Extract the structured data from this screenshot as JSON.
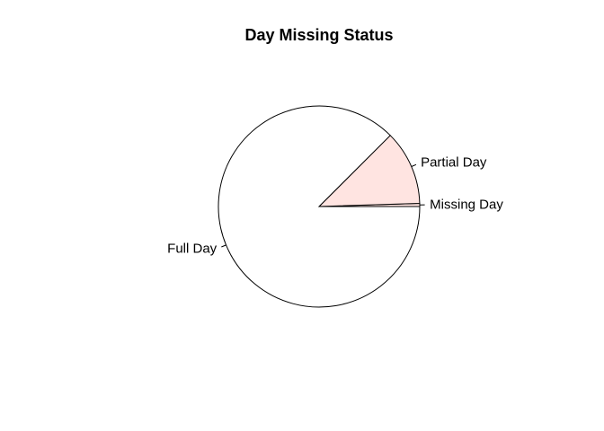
{
  "chart_data": {
    "type": "pie",
    "title": "Day Missing Status",
    "labels": [
      "Missing Day",
      "Partial Day",
      "Full Day"
    ],
    "values": [
      0.5,
      12.0,
      87.5
    ],
    "colors": [
      "#ffe4e1",
      "#ffe4e1",
      "#ffffff"
    ],
    "start_angle_deg": 0,
    "direction": "counterclockwise"
  }
}
